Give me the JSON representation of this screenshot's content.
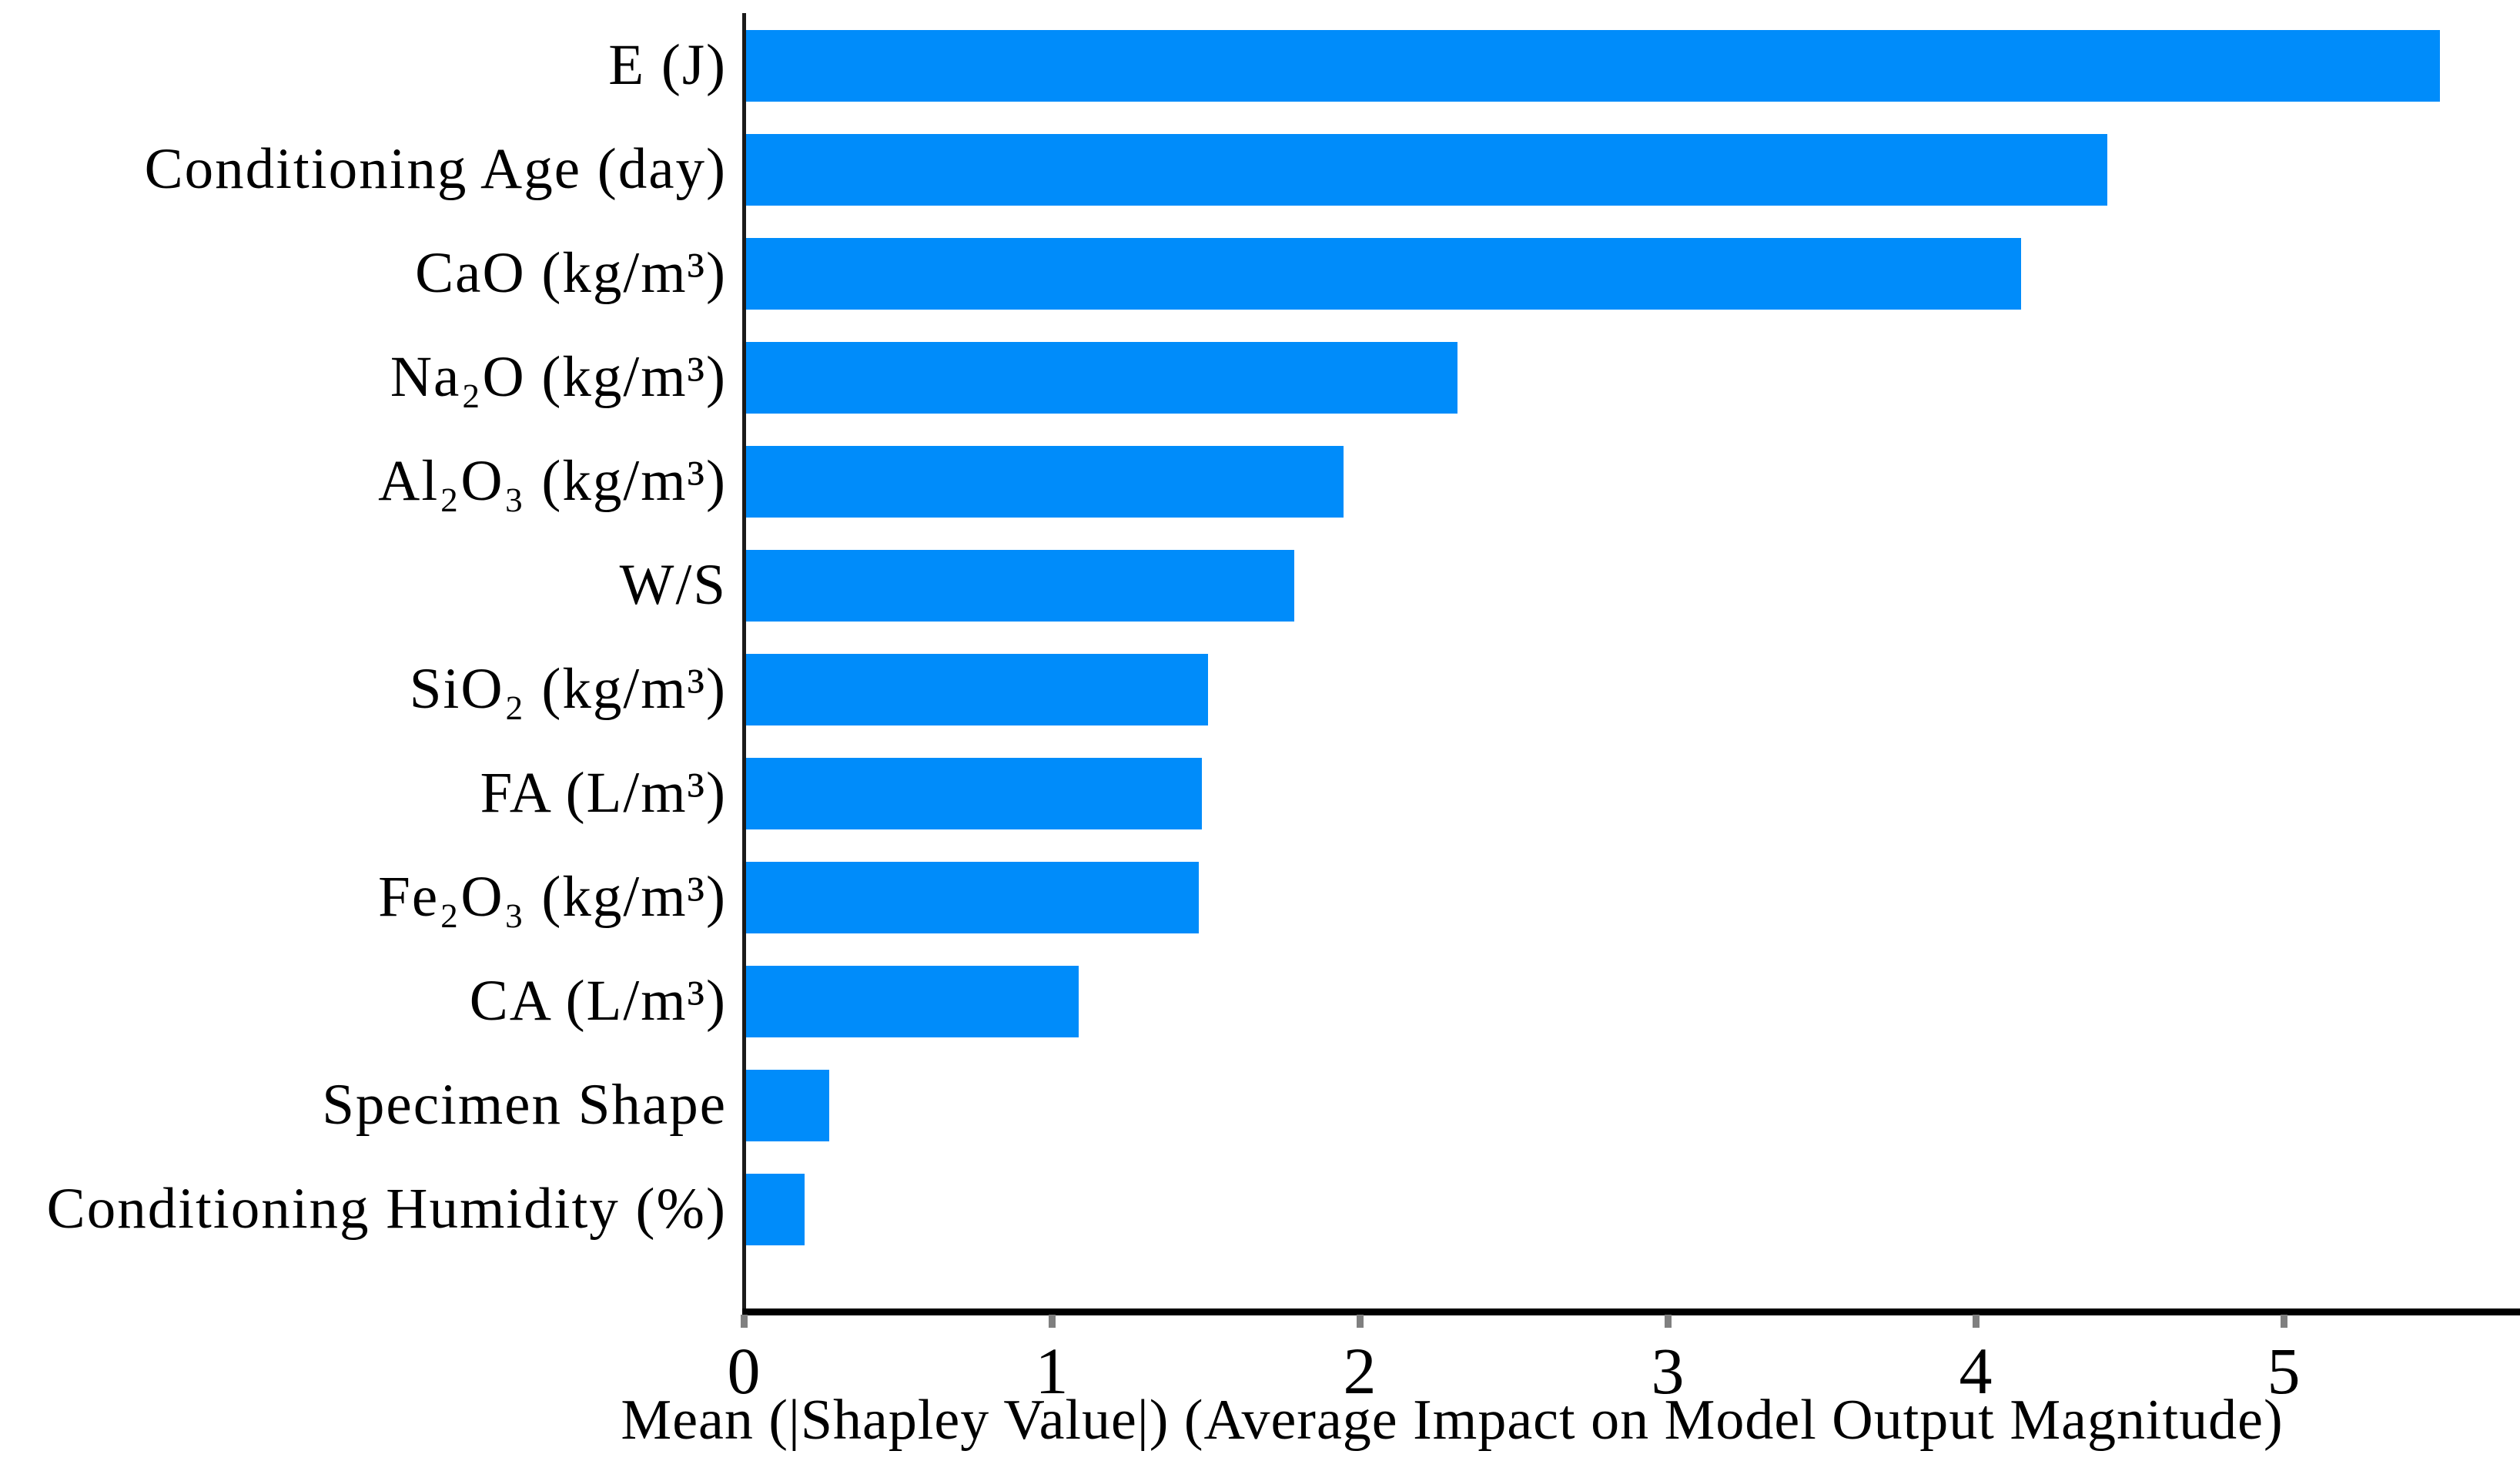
{
  "chart_data": {
    "type": "bar",
    "orientation": "horizontal",
    "title": "",
    "xlabel": "Mean (|Shapley Value|) (Average Impact on Model Output Magnitude)",
    "ylabel": "",
    "categories": [
      "E (J)",
      "Conditioning Age (day)",
      "CaO (kg/m³)",
      "Na₂O (kg/m³)",
      "Al₂O₃ (kg/m³)",
      "W/S",
      "SiO₂ (kg/m³)",
      "FA (L/m³)",
      "Fe₂O₃ (kg/m³)",
      "CA (L/m³)",
      "Specimen Shape",
      "Conditioning Humidity (%)"
    ],
    "values": [
      5.5,
      4.42,
      4.14,
      2.31,
      1.94,
      1.78,
      1.5,
      1.48,
      1.47,
      1.08,
      0.27,
      0.19
    ],
    "x_ticks": [
      0,
      1,
      2,
      3,
      4,
      5
    ],
    "x_tick_labels": [
      "0",
      "1",
      "2",
      "3",
      "4",
      "5"
    ],
    "xlim": [
      0,
      5.76
    ],
    "grid": false,
    "legend": null,
    "bar_color": "#008cfa",
    "tick_mark_color": "#808080",
    "axis_color": "#000000",
    "text_color": "#000000",
    "background_color": "#ffffff"
  }
}
